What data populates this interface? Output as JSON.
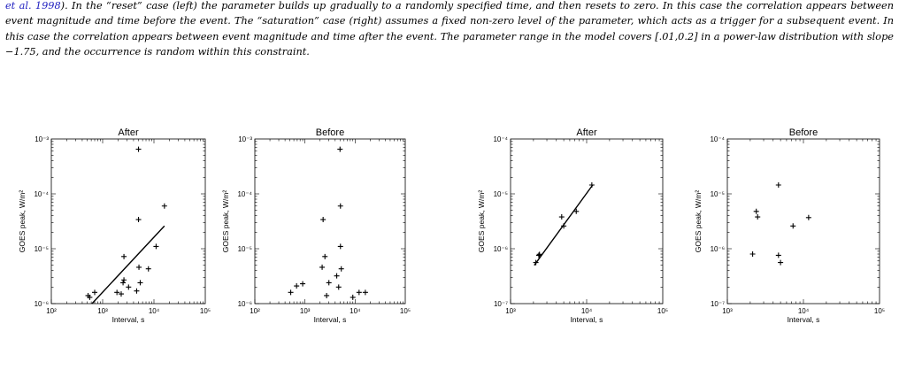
{
  "caption": {
    "ref": "et al. 1998",
    "after_ref": "). In the “reset” case (left) the parameter builds up gradually to a randomly specified time, and then resets to zero. In this case the correlation appears between event magnitude and time before the event. The “saturation” case (right) assumes a fixed non-zero level of the parameter, which acts as a trigger for a subsequent event. In this case the correlation appears between event magnitude and time after the event. The parameter range in the model covers [.01,0.2] in a power-law distribution with slope −1.75, and the occurrence is random within this constraint."
  },
  "chart_data": [
    {
      "type": "scatter",
      "title": "After",
      "xlabel": "Interval, s",
      "ylabel": "GOES peak, W/m²",
      "xscale": "log",
      "yscale": "log",
      "xlim": [
        100,
        100000
      ],
      "ylim": [
        1e-06,
        0.001
      ],
      "xticks": [
        "10²",
        "10³",
        "10⁴",
        "10⁵"
      ],
      "yticks": [
        "10⁻⁶",
        "10⁻⁵",
        "10⁻⁴",
        "10⁻³"
      ],
      "points": [
        [
          520,
          1.4e-06
        ],
        [
          560,
          1.3e-06
        ],
        [
          700,
          1.6e-06
        ],
        [
          1900,
          1.6e-06
        ],
        [
          2300,
          1.5e-06
        ],
        [
          2500,
          2.4e-06
        ],
        [
          2600,
          2.7e-06
        ],
        [
          3200,
          2e-06
        ],
        [
          2600,
          7.2e-06
        ],
        [
          5000,
          3.4e-05
        ],
        [
          5000,
          0.00065
        ],
        [
          5100,
          4.6e-06
        ],
        [
          4600,
          1.7e-06
        ],
        [
          5400,
          2.4e-06
        ],
        [
          7800,
          4.3e-06
        ],
        [
          11000,
          1.1e-05
        ],
        [
          16000,
          6e-05
        ]
      ],
      "fit_line": [
        [
          620,
          1e-06
        ],
        [
          16000,
          2.6e-05
        ]
      ]
    },
    {
      "type": "scatter",
      "title": "Before",
      "xlabel": "Interval, s",
      "ylabel": "GOES peak, W/m²",
      "xscale": "log",
      "yscale": "log",
      "xlim": [
        100,
        100000
      ],
      "ylim": [
        1e-06,
        0.001
      ],
      "xticks": [
        "10²",
        "10³",
        "10⁴",
        "10⁵"
      ],
      "yticks": [
        "10⁻⁶",
        "10⁻⁵",
        "10⁻⁴",
        "10⁻³"
      ],
      "points": [
        [
          520,
          1.6e-06
        ],
        [
          680,
          2.1e-06
        ],
        [
          900,
          2.3e-06
        ],
        [
          2300,
          3.4e-05
        ],
        [
          2500,
          7.2e-06
        ],
        [
          2200,
          4.6e-06
        ],
        [
          2700,
          1.4e-06
        ],
        [
          3000,
          2.4e-06
        ],
        [
          4300,
          3.2e-06
        ],
        [
          4700,
          2e-06
        ],
        [
          5000,
          0.00065
        ],
        [
          5100,
          6e-05
        ],
        [
          5100,
          1.1e-05
        ],
        [
          5300,
          4.3e-06
        ],
        [
          9000,
          1.3e-06
        ],
        [
          12000,
          1.6e-06
        ],
        [
          16000,
          1.6e-06
        ]
      ]
    },
    {
      "type": "scatter",
      "title": "After",
      "xlabel": "Interval, s",
      "ylabel": "GOES peak, W/m²",
      "xscale": "log",
      "yscale": "log",
      "xlim": [
        1000,
        100000
      ],
      "ylim": [
        1e-07,
        0.0001
      ],
      "xticks": [
        "10³",
        "10⁴",
        "10⁵"
      ],
      "yticks": [
        "10⁻⁷",
        "10⁻⁶",
        "10⁻⁵",
        "10⁻⁴"
      ],
      "points": [
        [
          2150,
          5.6e-07
        ],
        [
          2350,
          7.6e-07
        ],
        [
          2400,
          7.9e-07
        ],
        [
          4700,
          3.8e-06
        ],
        [
          5000,
          2.6e-06
        ],
        [
          7300,
          4.8e-06
        ],
        [
          11700,
          1.45e-05
        ]
      ],
      "fit_line": [
        [
          2050,
          5e-07
        ],
        [
          12000,
          1.45e-05
        ]
      ]
    },
    {
      "type": "scatter",
      "title": "Before",
      "xlabel": "Interval, s",
      "ylabel": "GOES peak, W/m²",
      "xscale": "log",
      "yscale": "log",
      "xlim": [
        1000,
        100000
      ],
      "ylim": [
        1e-07,
        0.0001
      ],
      "xticks": [
        "10³",
        "10⁴",
        "10⁵"
      ],
      "yticks": [
        "10⁻⁷",
        "10⁻⁶",
        "10⁻⁵",
        "10⁻⁴"
      ],
      "points": [
        [
          2150,
          8e-07
        ],
        [
          2400,
          4.8e-06
        ],
        [
          2500,
          3.8e-06
        ],
        [
          4700,
          7.6e-07
        ],
        [
          4700,
          1.45e-05
        ],
        [
          5000,
          5.6e-07
        ],
        [
          7300,
          2.6e-06
        ],
        [
          11700,
          3.7e-06
        ]
      ]
    }
  ]
}
